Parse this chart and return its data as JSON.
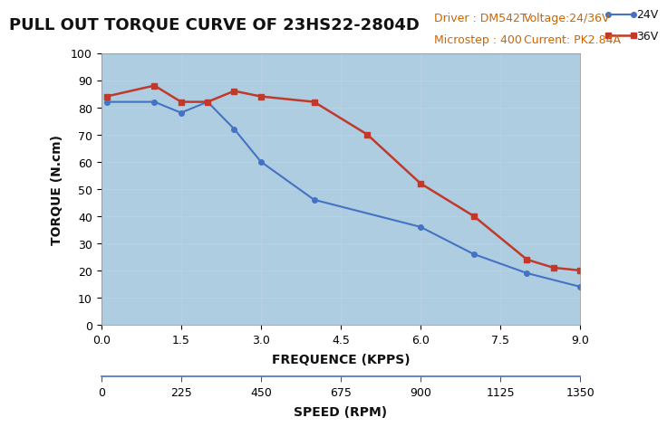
{
  "title": "PULL OUT TORQUE CURVE OF 23HS22-2804D",
  "driver_text": "Driver : DM542T",
  "voltage_text": "Voltage:24/36V",
  "microstep_text": "Microstep : 400",
  "current_text": "Current: PK2.84A",
  "xlabel_freq": "FREQUENCE (KPPS)",
  "xlabel_rpm": "SPEED (RPM)",
  "ylabel": "TORQUE (N.cm)",
  "x_freq_ticks": [
    0,
    1.5,
    3.0,
    4.5,
    6.0,
    7.5,
    9.0
  ],
  "x_rpm_ticks": [
    0,
    225,
    450,
    675,
    900,
    1125,
    1350
  ],
  "ylim": [
    0,
    100
  ],
  "xlim": [
    0,
    9
  ],
  "yticks": [
    0,
    10,
    20,
    30,
    40,
    50,
    60,
    70,
    80,
    90,
    100
  ],
  "grid_color": "#b8cfe8",
  "bg_color": "#aecde0",
  "outer_bg": "#ffffff",
  "line_24v_x": [
    0.1,
    1.0,
    1.5,
    2.0,
    2.5,
    3.0,
    4.0,
    6.0,
    7.0,
    8.0,
    9.0
  ],
  "line_24v_y": [
    82,
    82,
    78,
    82,
    72,
    60,
    46,
    36,
    26,
    19,
    14
  ],
  "line_24v_color": "#4472c4",
  "line_24v_label": "24V",
  "line_36v_x": [
    0.1,
    1.0,
    1.5,
    2.0,
    2.5,
    3.0,
    4.0,
    5.0,
    6.0,
    7.0,
    8.0,
    8.5,
    9.0
  ],
  "line_36v_y": [
    84,
    88,
    82,
    82,
    86,
    84,
    82,
    70,
    52,
    40,
    24,
    21,
    20
  ],
  "line_36v_color": "#c0392b",
  "line_36v_label": "36V",
  "info_color": "#cc6600",
  "title_fontsize": 13,
  "axis_label_fontsize": 10,
  "tick_fontsize": 9,
  "info_fontsize": 9,
  "rpm_per_kpps": 150
}
